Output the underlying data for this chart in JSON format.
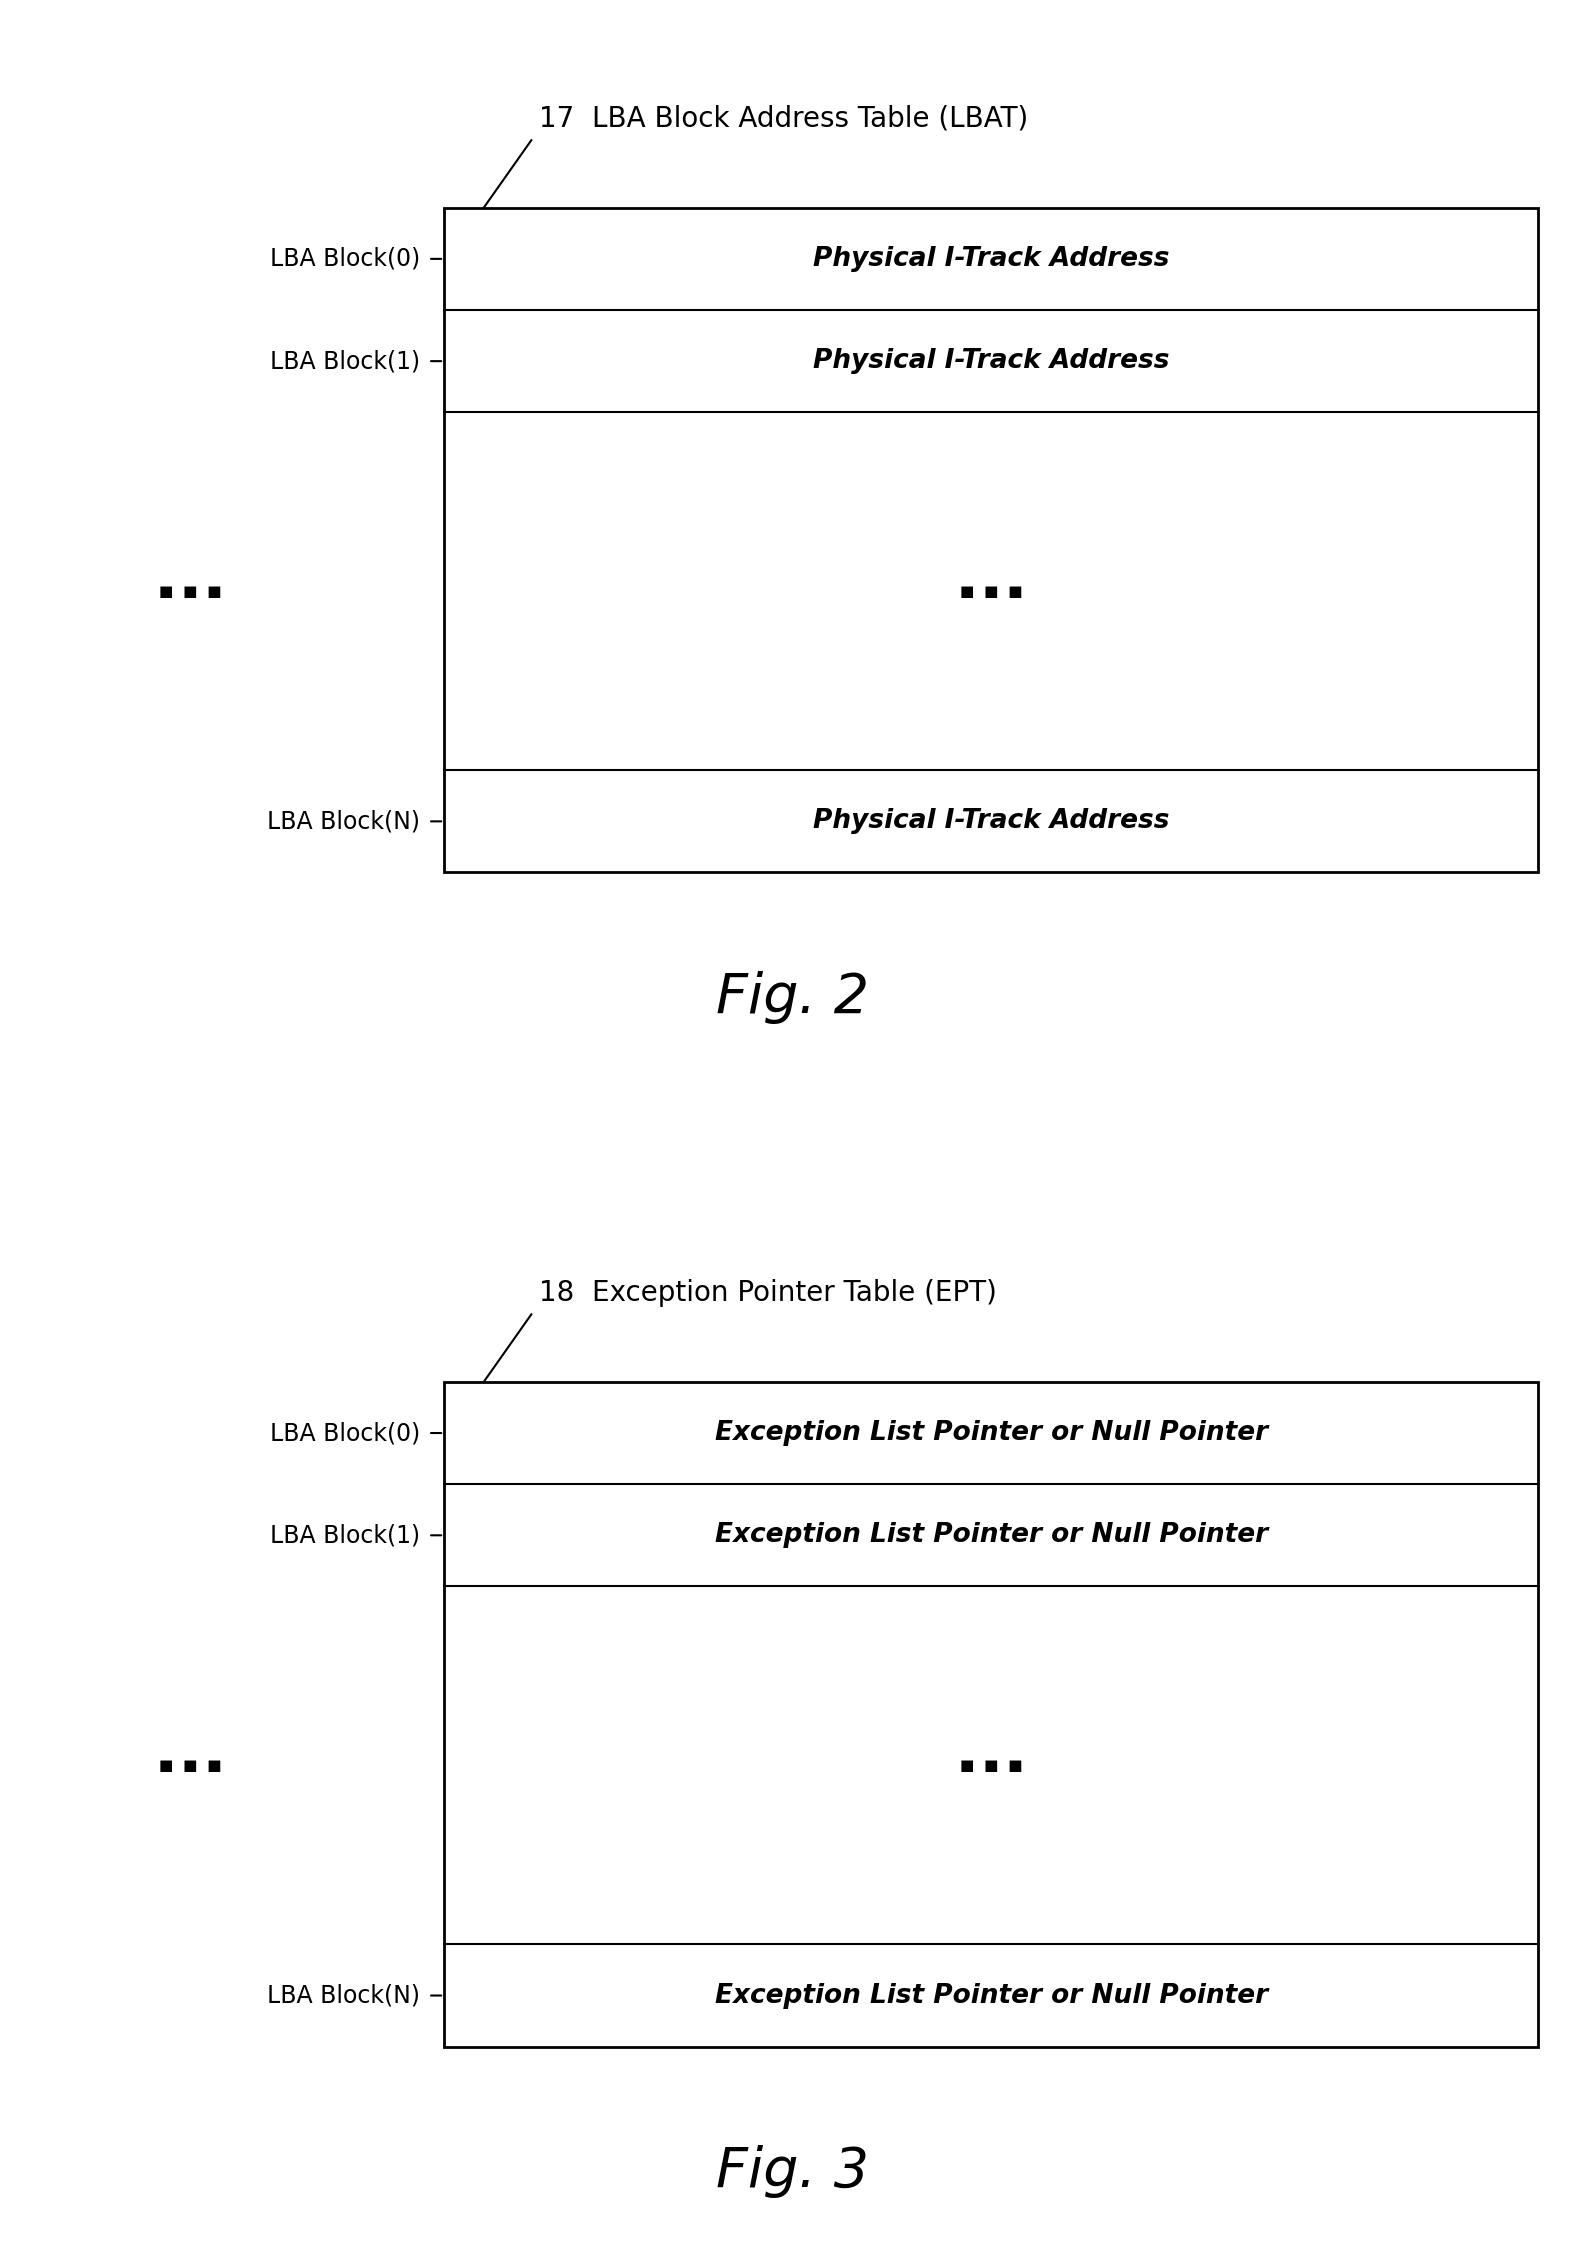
{
  "fig1": {
    "title_num": "17",
    "title_text": "LBA Block Address Table (LBAT)",
    "rows": [
      {
        "label": "LBA Block(0)",
        "content": "Physical I-Track Address",
        "is_dots": false
      },
      {
        "label": "LBA Block(1)",
        "content": "Physical I-Track Address",
        "is_dots": false
      },
      {
        "label": "",
        "content": "",
        "is_dots": true
      },
      {
        "label": "LBA Block(N)",
        "content": "Physical I-Track Address",
        "is_dots": false
      }
    ],
    "fig_label": "Fig. 2"
  },
  "fig2": {
    "title_num": "18",
    "title_text": "Exception Pointer Table (EPT)",
    "rows": [
      {
        "label": "LBA Block(0)",
        "content": "Exception List Pointer or Null Pointer",
        "is_dots": false
      },
      {
        "label": "LBA Block(1)",
        "content": "Exception List Pointer or Null Pointer",
        "is_dots": false
      },
      {
        "label": "",
        "content": "",
        "is_dots": true
      },
      {
        "label": "LBA Block(N)",
        "content": "Exception List Pointer or Null Pointer",
        "is_dots": false
      }
    ],
    "fig_label": "Fig. 3"
  },
  "bg_color": "#ffffff",
  "box_color": "#000000",
  "text_color": "#000000"
}
